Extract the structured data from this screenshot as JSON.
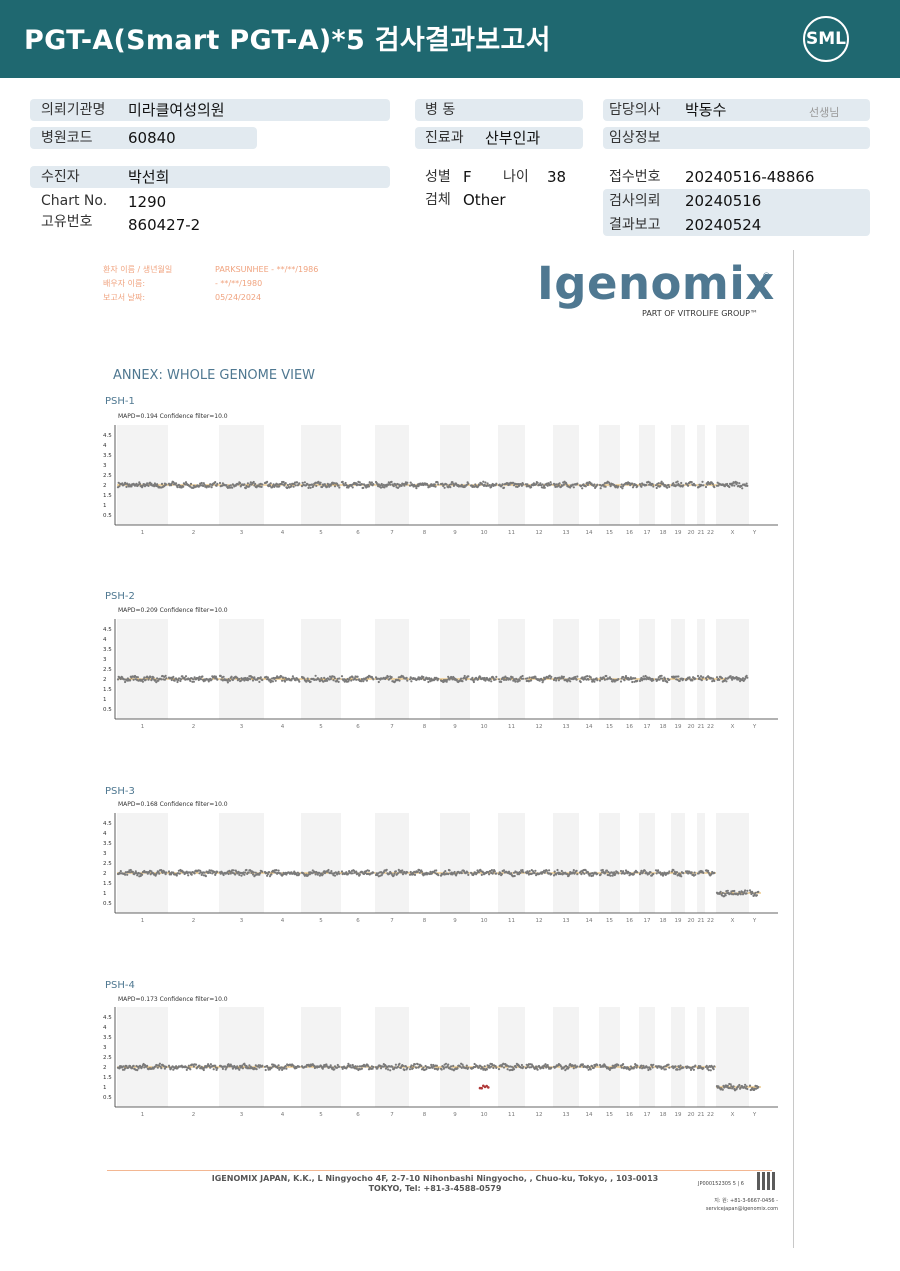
{
  "header": {
    "title": "PGT-A(Smart  PGT-A)*5 검사결과보고서",
    "logo_text": "SML"
  },
  "patient_info": {
    "institution_label": "의뢰기관명",
    "institution_value": "미라클여성의원",
    "hospital_code_label": "병원코드",
    "hospital_code_value": "60840",
    "ward_label": "병   동",
    "ward_value": "",
    "department_label": "진료과",
    "department_value": "산부인과",
    "doctor_label": "담당의사",
    "doctor_value": "박동수",
    "doctor_suffix": "선생님",
    "clinical_label": "임상정보",
    "clinical_value": "",
    "patient_label": "수진자",
    "patient_value": "박선희",
    "chart_label": "Chart No.",
    "chart_value": "1290",
    "unique_label": "고유번호",
    "unique_value": "860427-2",
    "sex_label": "성별",
    "sex_value": "F",
    "age_label": "나이",
    "age_value": "38",
    "specimen_label": "검체",
    "specimen_value": "Other",
    "receipt_label": "접수번호",
    "receipt_value": "20240516-48866",
    "request_label": "검사의뢰",
    "request_value": "20240516",
    "report_label": "결과보고",
    "report_value": "20240524"
  },
  "report_meta": {
    "patient_label": "환자 이름 / 생년월일",
    "patient_value": "PARKSUNHEE - **/**/1986",
    "partner_label": "배우자 이름:",
    "partner_value": "- **/**/1980",
    "date_label": "보고서 날짜:",
    "date_value": "05/24/2024"
  },
  "igenomix": {
    "logo_text": "Igenomix",
    "reg_mark": "®",
    "tagline": "PART OF VITROLIFE GROUP™"
  },
  "annex_title": "ANNEX: WHOLE GENOME VIEW",
  "colors": {
    "header_bg": "#1f6870",
    "info_pill": "#e2eaf0",
    "plot_title": "#4f7891",
    "baseline": "#e6b35a",
    "points": "#7a7a7a",
    "anomaly": "#b03a3a",
    "band": "#f3f3f3"
  },
  "chart_data": [
    {
      "type": "scatter",
      "title": "PSH-1",
      "subtitle": "MAPD=0.194 Confidence filter=10.0",
      "ylabel": "",
      "ylim": [
        0,
        5
      ],
      "y_ticks": [
        "4.5",
        "4",
        "3.5",
        "3",
        "2.5",
        "2",
        "1.5",
        "1",
        "0.5"
      ],
      "categories": [
        "1",
        "2",
        "3",
        "4",
        "5",
        "6",
        "7",
        "8",
        "9",
        "10",
        "11",
        "12",
        "13",
        "14",
        "15",
        "16",
        "17",
        "18",
        "19",
        "20",
        "21",
        "22",
        "X",
        "Y"
      ],
      "baseline": 2,
      "segments": [
        {
          "chromosome": "1-22",
          "copy_number": 2
        },
        {
          "chromosome": "X",
          "copy_number": 2
        }
      ]
    },
    {
      "type": "scatter",
      "title": "PSH-2",
      "subtitle": "MAPD=0.209 Confidence filter=10.0",
      "ylabel": "",
      "ylim": [
        0,
        5
      ],
      "y_ticks": [
        "4.5",
        "4",
        "3.5",
        "3",
        "2.5",
        "2",
        "1.5",
        "1",
        "0.5"
      ],
      "categories": [
        "1",
        "2",
        "3",
        "4",
        "5",
        "6",
        "7",
        "8",
        "9",
        "10",
        "11",
        "12",
        "13",
        "14",
        "15",
        "16",
        "17",
        "18",
        "19",
        "20",
        "21",
        "22",
        "X",
        "Y"
      ],
      "baseline": 2,
      "segments": [
        {
          "chromosome": "1-22",
          "copy_number": 2
        },
        {
          "chromosome": "X",
          "copy_number": 2
        }
      ]
    },
    {
      "type": "scatter",
      "title": "PSH-3",
      "subtitle": "MAPD=0.168 Confidence filter=10.0",
      "ylabel": "",
      "ylim": [
        0,
        5
      ],
      "y_ticks": [
        "4.5",
        "4",
        "3.5",
        "3",
        "2.5",
        "2",
        "1.5",
        "1",
        "0.5"
      ],
      "categories": [
        "1",
        "2",
        "3",
        "4",
        "5",
        "6",
        "7",
        "8",
        "9",
        "10",
        "11",
        "12",
        "13",
        "14",
        "15",
        "16",
        "17",
        "18",
        "19",
        "20",
        "21",
        "22",
        "X",
        "Y"
      ],
      "baseline": 2,
      "segments": [
        {
          "chromosome": "1-22",
          "copy_number": 2
        },
        {
          "chromosome": "X",
          "copy_number": 1
        },
        {
          "chromosome": "Y",
          "copy_number": 1
        }
      ]
    },
    {
      "type": "scatter",
      "title": "PSH-4",
      "subtitle": "MAPD=0.173 Confidence filter=10.0",
      "ylabel": "",
      "ylim": [
        0,
        5
      ],
      "y_ticks": [
        "4.5",
        "4",
        "3.5",
        "3",
        "2.5",
        "2",
        "1.5",
        "1",
        "0.5"
      ],
      "categories": [
        "1",
        "2",
        "3",
        "4",
        "5",
        "6",
        "7",
        "8",
        "9",
        "10",
        "11",
        "12",
        "13",
        "14",
        "15",
        "16",
        "17",
        "18",
        "19",
        "20",
        "21",
        "22",
        "X",
        "Y"
      ],
      "baseline": 2,
      "segments": [
        {
          "chromosome": "1-22",
          "copy_number": 2
        },
        {
          "chromosome": "10",
          "copy_number": 1,
          "partial": true
        },
        {
          "chromosome": "X",
          "copy_number": 1
        },
        {
          "chromosome": "Y",
          "copy_number": 1
        }
      ]
    }
  ],
  "footer": {
    "address": "IGENOMIX JAPAN, K.K., L Ningyocho 4F, 2-7-10 Nihonbashi Ningyocho, , Chuo-ku, Tokyo, , 103-0013 TOKYO, Tel: +81-3-4588-0579",
    "doc_code": "JP000152305    5 | 6",
    "contact_line1": "지: 원: +81-3-6667-0456 -",
    "contact_line2": "servicejapan@igenomix.com"
  }
}
